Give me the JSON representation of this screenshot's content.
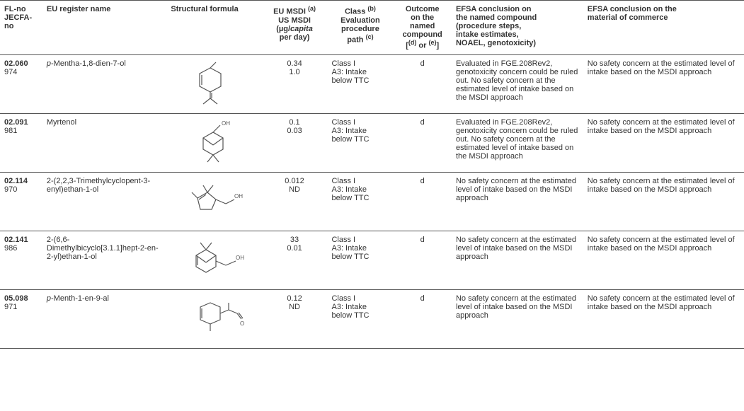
{
  "columns": {
    "fl": {
      "l1": "FL-no",
      "l2": "JECFA-",
      "l3": "no"
    },
    "name": "EU register name",
    "struct": "Structural formula",
    "msdi": {
      "l1": "EU MSDI",
      "sup1": "(a)",
      "l2": "US MSDI",
      "l3": "(µg/",
      "l3i": "capita",
      "l4": "per day)"
    },
    "class": {
      "l1": "Class",
      "sup1": "(b)",
      "l2": "Evaluation",
      "l3": "procedure",
      "l4": "path",
      "sup2": "(c)"
    },
    "outcome": {
      "l1": "Outcome",
      "l2": "on the",
      "l3": "named",
      "l4": "compound",
      "l5": "[",
      "sup1": "(d)",
      "l6": " or ",
      "sup2": "(e)",
      "l7": "]"
    },
    "efsa1": {
      "l1": "EFSA conclusion on",
      "l2": "the named compound",
      "l3": "(procedure steps,",
      "l4": "intake estimates,",
      "l5": "NOAEL, genotoxicity)"
    },
    "efsa2": {
      "l1": "EFSA conclusion on the",
      "l2": "material of commerce"
    }
  },
  "rows": [
    {
      "fl1": "02.060",
      "fl2": "974",
      "name_pre": "p",
      "name_rest": "-Mentha-1,8-dien-7-ol",
      "msdi1": "0.34",
      "msdi2": "1.0",
      "class1": "Class I",
      "class2": "A3: Intake below TTC",
      "outcome": "d",
      "efsa1": "Evaluated in FGE.208Rev2, genotoxicity concern could be ruled out. No safety concern at the estimated level of intake based on the MSDI approach",
      "efsa2": "No safety concern at the estimated level of intake based on the MSDI approach"
    },
    {
      "fl1": "02.091",
      "fl2": "981",
      "name_pre": "",
      "name_rest": "Myrtenol",
      "msdi1": "0.1",
      "msdi2": "0.03",
      "class1": "Class I",
      "class2": "A3: Intake below TTC",
      "outcome": "d",
      "efsa1": "Evaluated in FGE.208Rev2, genotoxicity concern could be ruled out. No safety concern at the estimated level of intake based on the MSDI approach",
      "efsa2": "No safety concern at the estimated level of intake based on the MSDI approach"
    },
    {
      "fl1": "02.114",
      "fl2": "970",
      "name_pre": "",
      "name_rest": "2-(2,2,3-Trimethylcyclopent-3-enyl)ethan-1-ol",
      "msdi1": "0.012",
      "msdi2": "ND",
      "class1": "Class I",
      "class2": "A3: Intake below TTC",
      "outcome": "d",
      "efsa1": "No safety concern at the estimated level of intake based on the MSDI approach",
      "efsa2": "No safety concern at the estimated level of intake based on the MSDI approach"
    },
    {
      "fl1": "02.141",
      "fl2": "986",
      "name_pre": "",
      "name_rest": "2-(6,6-Dimethylbicyclo[3.1.1]hept-2-en-2-yl)ethan-1-ol",
      "msdi1": "33",
      "msdi2": "0.01",
      "class1": "Class I",
      "class2": "A3: Intake below TTC",
      "outcome": "d",
      "efsa1": "No safety concern at the estimated level of intake based on the MSDI approach",
      "efsa2": "No safety concern at the estimated level of intake based on the MSDI approach"
    },
    {
      "fl1": "05.098",
      "fl2": "971",
      "name_pre": "p",
      "name_rest": "-Menth-1-en-9-al",
      "msdi1": "0.12",
      "msdi2": "ND",
      "class1": "Class I",
      "class2": "A3: Intake below TTC",
      "outcome": "d",
      "efsa1": "No safety concern at the estimated level of intake based on the MSDI approach",
      "efsa2": "No safety concern at the estimated level of intake based on the MSDI approach"
    }
  ],
  "svg": {
    "stroke": "#555555",
    "stroke_width": "1.2"
  }
}
